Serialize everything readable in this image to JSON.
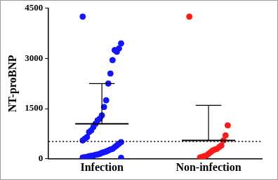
{
  "chart_data": {
    "type": "scatter",
    "y_label": "NT-proBNP",
    "categories": [
      "Infection",
      "Non-infection"
    ],
    "values": [
      [
        4250,
        3450,
        3300,
        3200,
        3250,
        2950,
        2550,
        2250,
        1750,
        1550,
        1300,
        1200,
        1150,
        1050,
        950,
        850,
        800,
        650,
        600,
        550,
        500,
        450,
        400,
        350,
        300,
        280,
        250,
        220,
        200,
        180,
        150,
        130,
        120,
        100,
        90,
        80,
        60,
        50,
        40,
        30
      ],
      [
        4250,
        1000,
        700,
        550,
        400,
        350,
        300,
        280,
        250,
        200,
        150,
        100,
        80,
        60,
        40
      ]
    ],
    "colors": [
      "#1414ff",
      "#ff1a1a"
    ],
    "means": [
      1050,
      550
    ],
    "sd": [
      1200,
      1050
    ],
    "reference_line": {
      "value": 520,
      "line_style": "dotted"
    },
    "ylim": [
      0,
      4500
    ],
    "yticks": [
      0,
      1500,
      3000,
      4500
    ],
    "grid": false
  }
}
